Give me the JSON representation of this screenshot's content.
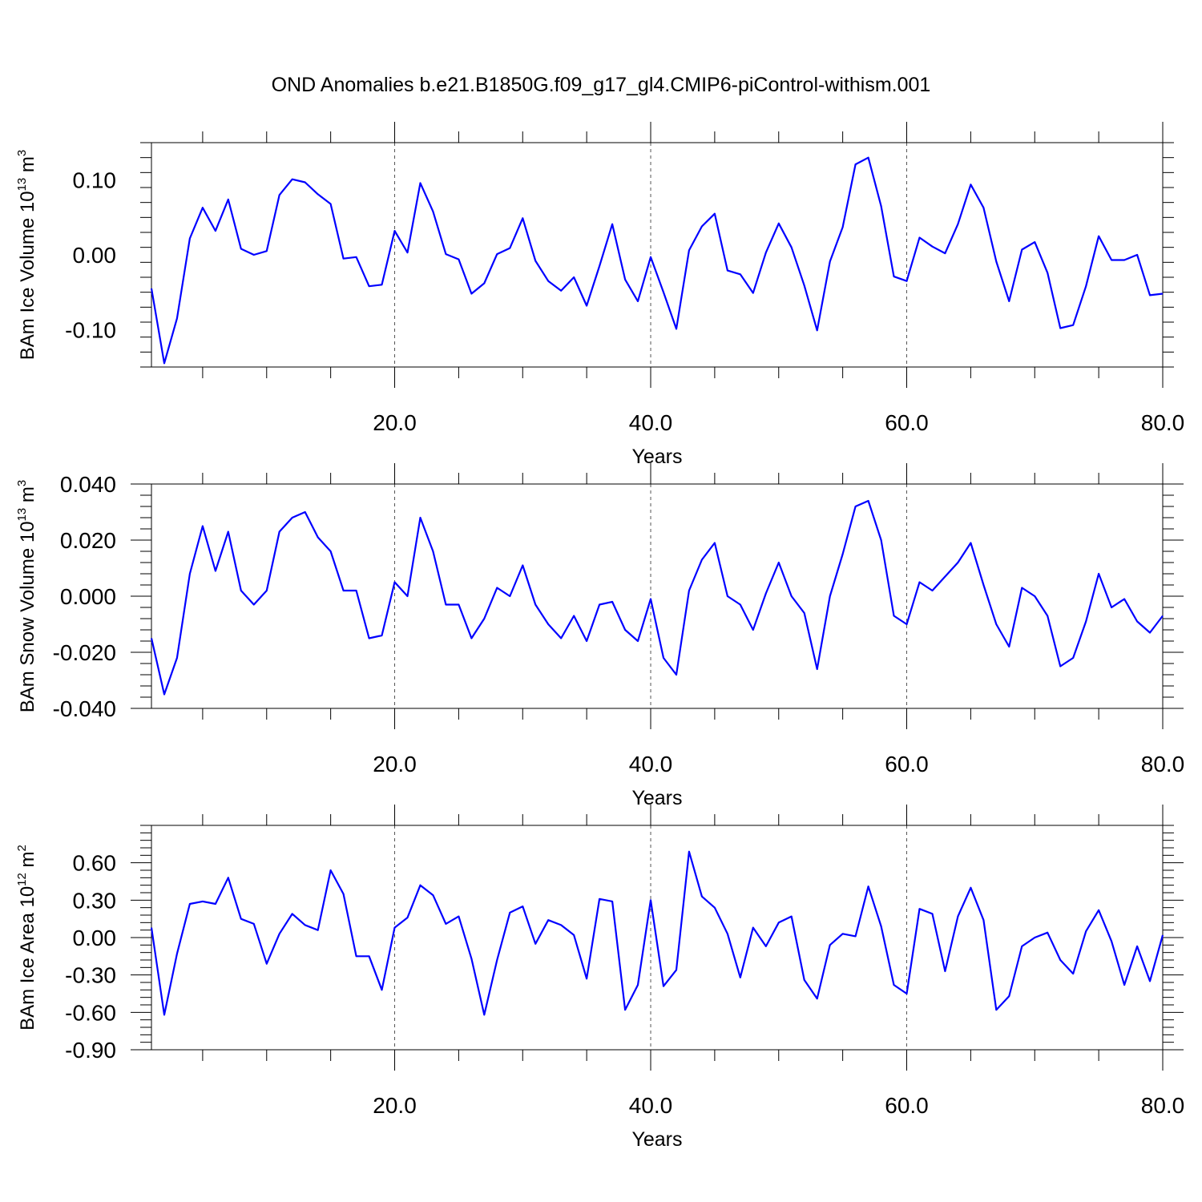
{
  "title": "OND Anomalies b.e21.B1850G.f09_g17_gl4.CMIP6-piControl-withism.001",
  "line_color": "#0000ff",
  "chart_data": [
    {
      "type": "line",
      "ylabel_main": "BAm Ice Volume 10",
      "ylabel_exp": "13",
      "ylabel_unit": " m",
      "ylabel_unit_exp": "3",
      "xlabel": "Years",
      "xlim": [
        1,
        80
      ],
      "ylim": [
        -0.15,
        0.15
      ],
      "x_major_ticks": [
        20,
        40,
        60,
        80
      ],
      "x_tick_labels": [
        "20.0",
        "40.0",
        "60.0",
        "80.0"
      ],
      "y_major_ticks": [
        -0.1,
        0.0,
        0.1
      ],
      "y_tick_labels": [
        "-0.10",
        "0.00",
        "0.10"
      ],
      "grid": "dashed vertical at major x ticks",
      "x": [
        1,
        2,
        3,
        4,
        5,
        6,
        7,
        8,
        9,
        10,
        11,
        12,
        13,
        14,
        15,
        16,
        17,
        18,
        19,
        20,
        21,
        22,
        23,
        24,
        25,
        26,
        27,
        28,
        29,
        30,
        31,
        32,
        33,
        34,
        35,
        36,
        37,
        38,
        39,
        40,
        41,
        42,
        43,
        44,
        45,
        46,
        47,
        48,
        49,
        50,
        51,
        52,
        53,
        54,
        55,
        56,
        57,
        58,
        59,
        60,
        61,
        62,
        63,
        64,
        65,
        66,
        67,
        68,
        69,
        70,
        71,
        72,
        73,
        74,
        75,
        76,
        77,
        78,
        79,
        80
      ],
      "values": [
        -0.045,
        -0.145,
        -0.085,
        0.022,
        0.063,
        0.032,
        0.074,
        0.008,
        0.0,
        0.005,
        0.08,
        0.101,
        0.097,
        0.081,
        0.068,
        -0.005,
        -0.003,
        -0.042,
        -0.04,
        0.032,
        0.003,
        0.096,
        0.058,
        0.001,
        -0.006,
        -0.052,
        -0.038,
        0.001,
        0.009,
        0.049,
        -0.008,
        -0.035,
        -0.048,
        -0.03,
        -0.068,
        -0.015,
        0.041,
        -0.033,
        -0.062,
        -0.003,
        -0.05,
        -0.099,
        0.006,
        0.038,
        0.055,
        -0.021,
        -0.026,
        -0.051,
        0.003,
        0.042,
        0.01,
        -0.041,
        -0.101,
        -0.009,
        0.037,
        0.121,
        0.13,
        0.065,
        -0.029,
        -0.035,
        0.023,
        0.011,
        0.002,
        0.041,
        0.094,
        0.063,
        -0.009,
        -0.062,
        0.007,
        0.017,
        -0.024,
        -0.098,
        -0.094,
        -0.042,
        0.025,
        -0.007,
        -0.007,
        0.0,
        -0.054,
        -0.052
      ]
    },
    {
      "type": "line",
      "ylabel_main": "BAm Snow Volume 10",
      "ylabel_exp": "13",
      "ylabel_unit": " m",
      "ylabel_unit_exp": "3",
      "xlabel": "Years",
      "xlim": [
        1,
        80
      ],
      "ylim": [
        -0.04,
        0.04
      ],
      "x_major_ticks": [
        20,
        40,
        60,
        80
      ],
      "x_tick_labels": [
        "20.0",
        "40.0",
        "60.0",
        "80.0"
      ],
      "y_major_ticks": [
        -0.04,
        -0.02,
        0.0,
        0.02,
        0.04
      ],
      "y_tick_labels": [
        "-0.040",
        "-0.020",
        "0.000",
        "0.020",
        "0.040"
      ],
      "grid": "dashed vertical at major x ticks",
      "x": [
        1,
        2,
        3,
        4,
        5,
        6,
        7,
        8,
        9,
        10,
        11,
        12,
        13,
        14,
        15,
        16,
        17,
        18,
        19,
        20,
        21,
        22,
        23,
        24,
        25,
        26,
        27,
        28,
        29,
        30,
        31,
        32,
        33,
        34,
        35,
        36,
        37,
        38,
        39,
        40,
        41,
        42,
        43,
        44,
        45,
        46,
        47,
        48,
        49,
        50,
        51,
        52,
        53,
        54,
        55,
        56,
        57,
        58,
        59,
        60,
        61,
        62,
        63,
        64,
        65,
        66,
        67,
        68,
        69,
        70,
        71,
        72,
        73,
        74,
        75,
        76,
        77,
        78,
        79,
        80
      ],
      "values": [
        -0.015,
        -0.035,
        -0.022,
        0.008,
        0.025,
        0.009,
        0.023,
        0.002,
        -0.003,
        0.002,
        0.023,
        0.028,
        0.03,
        0.021,
        0.016,
        0.002,
        0.002,
        -0.015,
        -0.014,
        0.005,
        0.0,
        0.028,
        0.016,
        -0.003,
        -0.003,
        -0.015,
        -0.008,
        0.003,
        0.0,
        0.011,
        -0.003,
        -0.01,
        -0.015,
        -0.007,
        -0.016,
        -0.003,
        -0.002,
        -0.012,
        -0.016,
        -0.001,
        -0.022,
        -0.028,
        0.002,
        0.013,
        0.019,
        0.0,
        -0.003,
        -0.012,
        0.001,
        0.012,
        0.0,
        -0.006,
        -0.026,
        0.0,
        0.015,
        0.032,
        0.034,
        0.02,
        -0.007,
        -0.01,
        0.005,
        0.002,
        0.007,
        0.012,
        0.019,
        0.004,
        -0.01,
        -0.018,
        0.003,
        0.0,
        -0.007,
        -0.025,
        -0.022,
        -0.009,
        0.008,
        -0.004,
        -0.001,
        -0.009,
        -0.013,
        -0.007
      ]
    },
    {
      "type": "line",
      "ylabel_main": "BAm Ice Area 10",
      "ylabel_exp": "12",
      "ylabel_unit": " m",
      "ylabel_unit_exp": "2",
      "xlabel": "Years",
      "xlim": [
        1,
        80
      ],
      "ylim": [
        -0.9,
        0.9
      ],
      "x_major_ticks": [
        20,
        40,
        60,
        80
      ],
      "x_tick_labels": [
        "20.0",
        "40.0",
        "60.0",
        "80.0"
      ],
      "y_major_ticks": [
        -0.9,
        -0.6,
        -0.3,
        0.0,
        0.3,
        0.6
      ],
      "y_tick_labels": [
        "-0.90",
        "-0.60",
        "-0.30",
        "0.00",
        "0.30",
        "0.60"
      ],
      "grid": "dashed vertical at major x ticks",
      "x": [
        1,
        2,
        3,
        4,
        5,
        6,
        7,
        8,
        9,
        10,
        11,
        12,
        13,
        14,
        15,
        16,
        17,
        18,
        19,
        20,
        21,
        22,
        23,
        24,
        25,
        26,
        27,
        28,
        29,
        30,
        31,
        32,
        33,
        34,
        35,
        36,
        37,
        38,
        39,
        40,
        41,
        42,
        43,
        44,
        45,
        46,
        47,
        48,
        49,
        50,
        51,
        52,
        53,
        54,
        55,
        56,
        57,
        58,
        59,
        60,
        61,
        62,
        63,
        64,
        65,
        66,
        67,
        68,
        69,
        70,
        71,
        72,
        73,
        74,
        75,
        76,
        77,
        78,
        79,
        80
      ],
      "values": [
        0.08,
        -0.62,
        -0.13,
        0.27,
        0.29,
        0.27,
        0.48,
        0.15,
        0.11,
        -0.21,
        0.03,
        0.19,
        0.1,
        0.06,
        0.54,
        0.35,
        -0.15,
        -0.15,
        -0.42,
        0.08,
        0.16,
        0.42,
        0.34,
        0.11,
        0.17,
        -0.17,
        -0.62,
        -0.18,
        0.2,
        0.25,
        -0.05,
        0.14,
        0.1,
        0.02,
        -0.33,
        0.31,
        0.29,
        -0.58,
        -0.38,
        0.3,
        -0.39,
        -0.26,
        0.69,
        0.33,
        0.24,
        0.03,
        -0.32,
        0.08,
        -0.07,
        0.12,
        0.17,
        -0.34,
        -0.49,
        -0.06,
        0.03,
        0.01,
        0.41,
        0.09,
        -0.38,
        -0.45,
        0.23,
        0.19,
        -0.27,
        0.17,
        0.4,
        0.14,
        -0.58,
        -0.47,
        -0.07,
        0.0,
        0.04,
        -0.18,
        -0.29,
        0.05,
        0.22,
        -0.03,
        -0.38,
        -0.07,
        -0.35,
        0.02
      ]
    }
  ]
}
